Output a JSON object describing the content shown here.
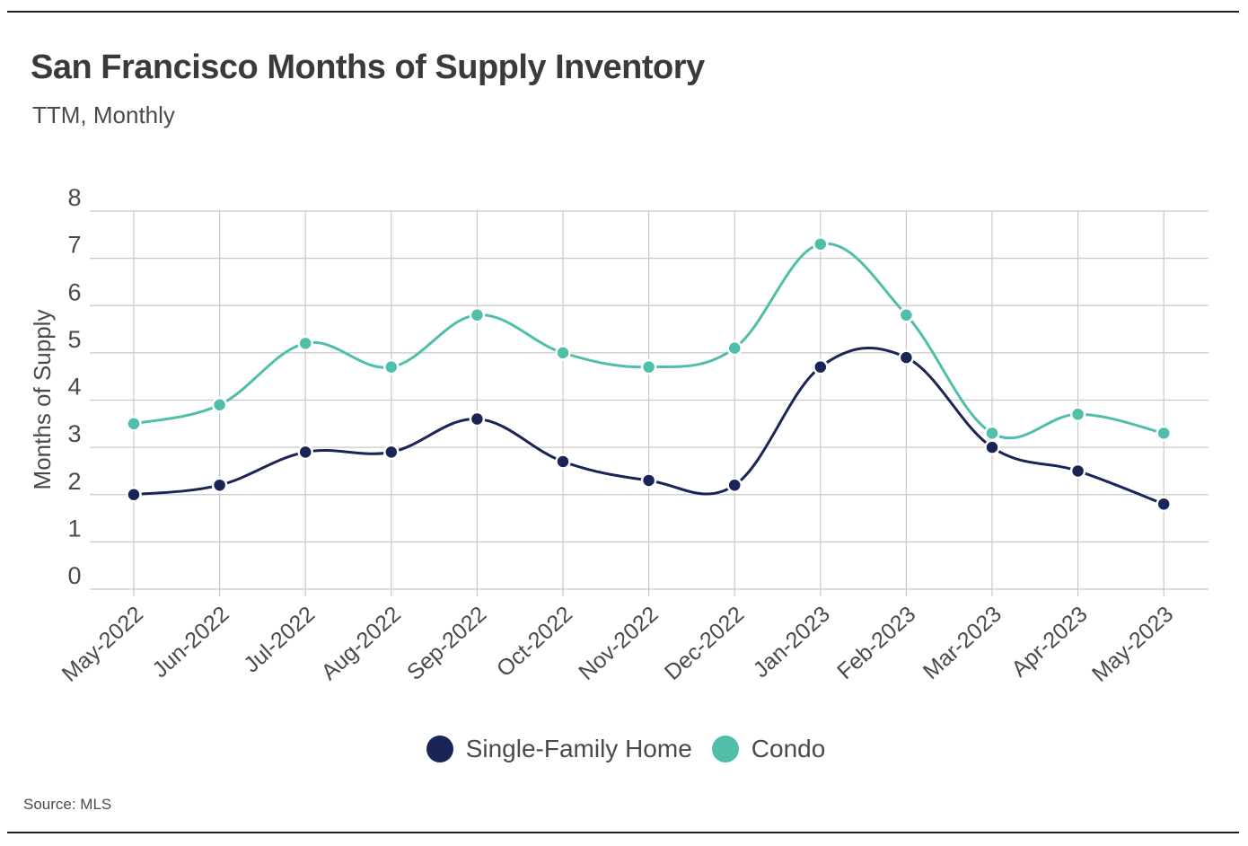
{
  "header": {
    "title": "San Francisco Months of Supply Inventory",
    "subtitle": "TTM, Monthly"
  },
  "footer": {
    "source": "Source:  MLS"
  },
  "colors": {
    "sfh": "#1a2456",
    "condo": "#4fbfaa",
    "grid": "#c8c8c8",
    "axis_text": "#4a4a4a"
  },
  "chart_data": {
    "type": "line",
    "title": "San Francisco Months of Supply Inventory",
    "subtitle": "TTM, Monthly",
    "xlabel": "",
    "ylabel": "Months of Supply",
    "ylim": [
      0,
      8
    ],
    "yticks": [
      0,
      1,
      2,
      3,
      4,
      5,
      6,
      7,
      8
    ],
    "grid": true,
    "legend_position": "bottom",
    "categories": [
      "May-2022",
      "Jun-2022",
      "Jul-2022",
      "Aug-2022",
      "Sep-2022",
      "Oct-2022",
      "Nov-2022",
      "Dec-2022",
      "Jan-2023",
      "Feb-2023",
      "Mar-2023",
      "Apr-2023",
      "May-2023"
    ],
    "series": [
      {
        "name": "Single-Family Home",
        "key": "sfh",
        "values": [
          2.0,
          2.2,
          2.9,
          2.9,
          3.6,
          2.7,
          2.3,
          2.2,
          4.7,
          4.9,
          3.0,
          2.5,
          1.8
        ]
      },
      {
        "name": "Condo",
        "key": "condo",
        "values": [
          3.5,
          3.9,
          5.2,
          4.7,
          5.8,
          5.0,
          4.7,
          5.1,
          7.3,
          5.8,
          3.3,
          3.7,
          3.3
        ]
      }
    ]
  }
}
